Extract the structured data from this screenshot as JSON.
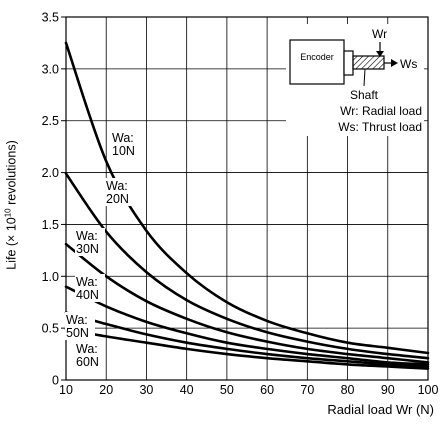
{
  "chart_data": {
    "type": "line",
    "xlabel": "Radial load Wr (N)",
    "ylabel": {
      "prefix": "Life (× 10",
      "exponent": "10",
      "suffix": " revolutions)"
    },
    "xlim": [
      10,
      100
    ],
    "ylim": [
      0,
      3.5
    ],
    "x_ticks": [
      "10",
      "20",
      "30",
      "40",
      "50",
      "60",
      "70",
      "80",
      "90",
      "100"
    ],
    "y_ticks": [
      "0",
      "0.5",
      "1.0",
      "1.5",
      "2.0",
      "2.5",
      "3.0",
      "3.5"
    ],
    "grid": true,
    "series": [
      {
        "name": "Wa: 10N",
        "label_lines": [
          "Wa:",
          "10N"
        ],
        "x": [
          10,
          20,
          30,
          40,
          50,
          60,
          70,
          80,
          90,
          100
        ],
        "y": [
          3.25,
          2.11,
          1.44,
          1.03,
          0.75,
          0.57,
          0.45,
          0.36,
          0.31,
          0.26
        ]
      },
      {
        "name": "Wa: 20N",
        "label_lines": [
          "Wa:",
          "20N"
        ],
        "x": [
          10,
          20,
          30,
          40,
          50,
          60,
          70,
          80,
          90,
          100
        ],
        "y": [
          1.99,
          1.43,
          1.04,
          0.77,
          0.59,
          0.46,
          0.37,
          0.3,
          0.25,
          0.21
        ]
      },
      {
        "name": "Wa: 30N",
        "label_lines": [
          "Wa:",
          "30N"
        ],
        "x": [
          10,
          20,
          30,
          40,
          50,
          60,
          70,
          80,
          90,
          100
        ],
        "y": [
          1.31,
          1.0,
          0.76,
          0.59,
          0.46,
          0.37,
          0.3,
          0.25,
          0.21,
          0.17
        ]
      },
      {
        "name": "Wa: 40N",
        "label_lines": [
          "Wa:",
          "40N"
        ],
        "x": [
          10,
          20,
          30,
          40,
          50,
          60,
          70,
          80,
          90,
          100
        ],
        "y": [
          0.9,
          0.71,
          0.56,
          0.45,
          0.36,
          0.3,
          0.25,
          0.21,
          0.17,
          0.15
        ]
      },
      {
        "name": "Wa: 50N",
        "label_lines": [
          "Wa:",
          "50N"
        ],
        "x": [
          10,
          20,
          30,
          40,
          50,
          60,
          70,
          80,
          90,
          100
        ],
        "y": [
          0.65,
          0.54,
          0.44,
          0.36,
          0.3,
          0.25,
          0.21,
          0.18,
          0.15,
          0.13
        ]
      },
      {
        "name": "Wa: 60N",
        "label_lines": [
          "Wa:",
          "60N"
        ],
        "x": [
          10,
          20,
          30,
          40,
          50,
          60,
          70,
          80,
          90,
          100
        ],
        "y": [
          0.49,
          0.42,
          0.36,
          0.3,
          0.25,
          0.21,
          0.18,
          0.15,
          0.13,
          0.11
        ]
      }
    ]
  },
  "inset": {
    "encoder_label": "Encoder",
    "wr_arrow_label": "Wr",
    "ws_arrow_label": "Ws",
    "shaft_label": "Shaft",
    "legend_wr": "Wr: Radial load",
    "legend_ws": "Ws: Thrust load"
  }
}
